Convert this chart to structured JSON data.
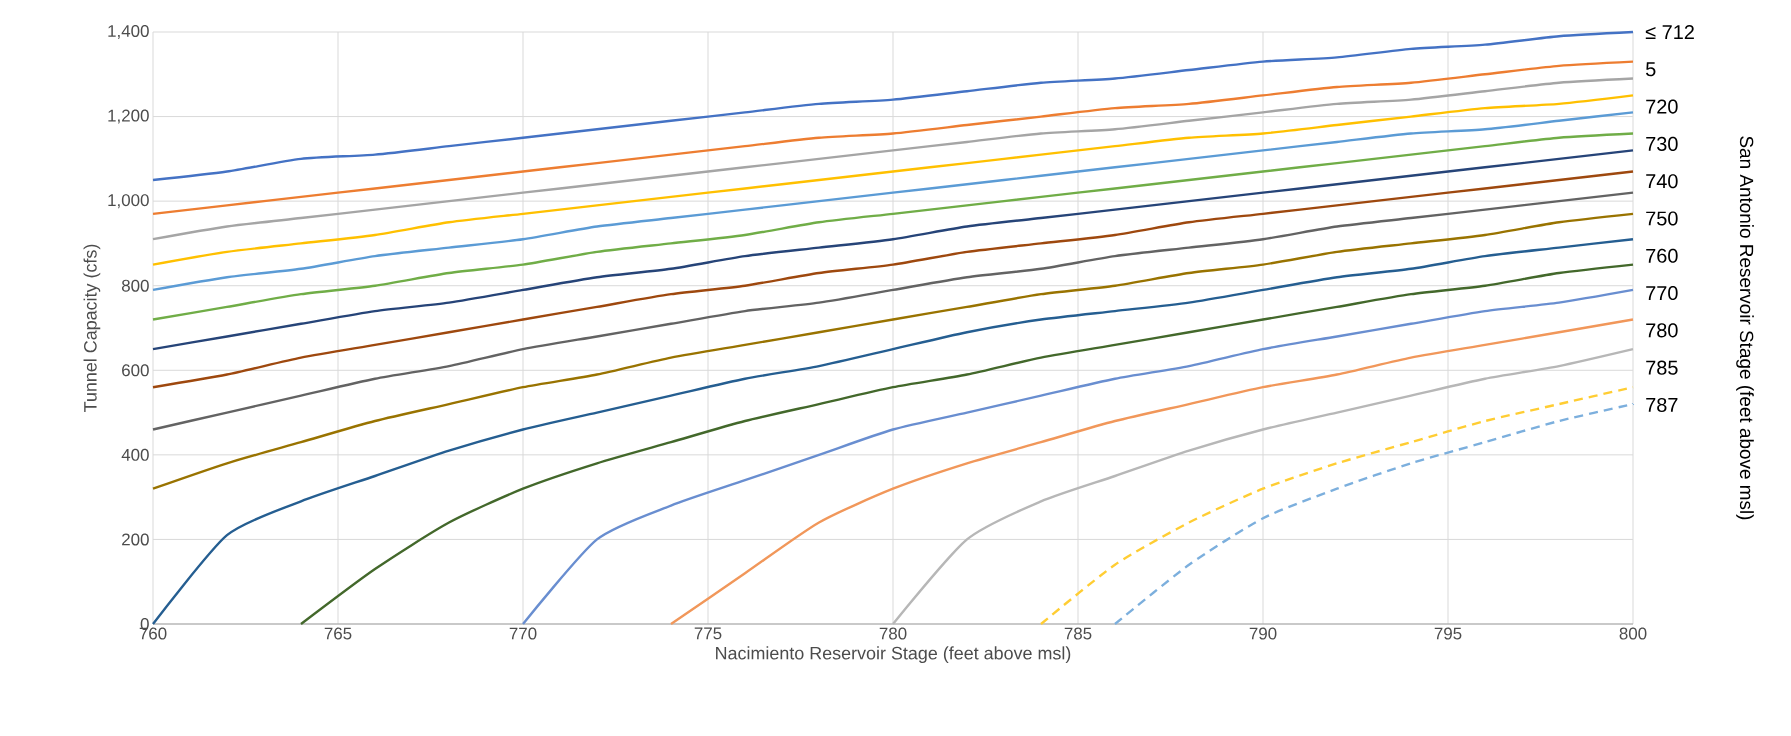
{
  "chart_data": {
    "type": "line",
    "xlabel": "Nacimiento Reservoir Stage (feet above msl)",
    "ylabel": "Tunnel Capacity (cfs)",
    "y2label": "San Antonio Reservoir Stage (feet above msl)",
    "x": [
      760,
      762,
      764,
      766,
      768,
      770,
      772,
      774,
      776,
      778,
      780,
      782,
      784,
      786,
      788,
      790,
      792,
      794,
      796,
      798,
      800
    ],
    "xlim": [
      760,
      800
    ],
    "xticks": [
      760,
      765,
      770,
      775,
      780,
      785,
      790,
      795,
      800
    ],
    "ylim": [
      0,
      1400
    ],
    "yticks": [
      0,
      200,
      400,
      600,
      800,
      {
        "value": 1000,
        "label": "1,000"
      },
      {
        "value": 1200,
        "label": "1,200"
      },
      {
        "value": 1400,
        "label": "1,400"
      }
    ],
    "grid": true,
    "line_style": "solid",
    "series": [
      {
        "color": "#4472c4",
        "values": [
          1050,
          1070,
          1100,
          1110,
          1130,
          1150,
          1170,
          1190,
          1210,
          1230,
          1240,
          1260,
          1280,
          1290,
          1310,
          1330,
          1340,
          1360,
          1370,
          1390,
          1400
        ]
      },
      {
        "color": "#ed7d31",
        "values": [
          970,
          990,
          1010,
          1030,
          1050,
          1070,
          1090,
          1110,
          1130,
          1150,
          1160,
          1180,
          1200,
          1220,
          1230,
          1250,
          1270,
          1280,
          1300,
          1320,
          1330
        ]
      },
      {
        "color": "#a5a5a5",
        "values": [
          910,
          940,
          960,
          980,
          1000,
          1020,
          1040,
          1060,
          1080,
          1100,
          1120,
          1140,
          1160,
          1170,
          1190,
          1210,
          1230,
          1240,
          1260,
          1280,
          1290
        ]
      },
      {
        "color": "#ffc000",
        "values": [
          850,
          880,
          900,
          920,
          950,
          970,
          990,
          1010,
          1030,
          1050,
          1070,
          1090,
          1110,
          1130,
          1150,
          1160,
          1180,
          1200,
          1220,
          1230,
          1250
        ]
      },
      {
        "color": "#5b9bd5",
        "values": [
          790,
          820,
          840,
          870,
          890,
          910,
          940,
          960,
          980,
          1000,
          1020,
          1040,
          1060,
          1080,
          1100,
          1120,
          1140,
          1160,
          1170,
          1190,
          1210
        ]
      },
      {
        "color": "#70ad47",
        "values": [
          720,
          750,
          780,
          800,
          830,
          850,
          880,
          900,
          920,
          950,
          970,
          990,
          1010,
          1030,
          1050,
          1070,
          1090,
          1110,
          1130,
          1150,
          1160
        ]
      },
      {
        "color": "#264478",
        "values": [
          650,
          680,
          710,
          740,
          760,
          790,
          820,
          840,
          870,
          890,
          910,
          940,
          960,
          980,
          1000,
          1020,
          1040,
          1060,
          1080,
          1100,
          1120
        ]
      },
      {
        "color": "#9e480e",
        "values": [
          560,
          590,
          630,
          660,
          690,
          720,
          750,
          780,
          800,
          830,
          850,
          880,
          900,
          920,
          950,
          970,
          990,
          1010,
          1030,
          1050,
          1070
        ]
      },
      {
        "color": "#636363",
        "values": [
          460,
          500,
          540,
          580,
          610,
          650,
          680,
          710,
          740,
          760,
          790,
          820,
          840,
          870,
          890,
          910,
          940,
          960,
          980,
          1000,
          1020
        ]
      },
      {
        "color": "#997300",
        "values": [
          320,
          380,
          430,
          480,
          520,
          560,
          590,
          630,
          660,
          690,
          720,
          750,
          780,
          800,
          830,
          850,
          880,
          900,
          920,
          950,
          970
        ]
      },
      {
        "color": "#255e91",
        "values": [
          0,
          210,
          290,
          350,
          410,
          460,
          500,
          540,
          580,
          610,
          650,
          690,
          720,
          740,
          760,
          790,
          820,
          840,
          870,
          890,
          910
        ]
      },
      {
        "color": "#43682b",
        "x": [
          764,
          766,
          768,
          770,
          772,
          774,
          776,
          778,
          780,
          782,
          784,
          786,
          788,
          790,
          792,
          794,
          796,
          798,
          800
        ],
        "values": [
          0,
          130,
          240,
          320,
          380,
          430,
          480,
          520,
          560,
          590,
          630,
          660,
          690,
          720,
          750,
          780,
          800,
          830,
          850
        ]
      },
      {
        "color": "#698ed0",
        "x": [
          770,
          772,
          774,
          776,
          778,
          780,
          782,
          784,
          786,
          788,
          790,
          792,
          794,
          796,
          798,
          800
        ],
        "values": [
          0,
          200,
          280,
          340,
          400,
          460,
          500,
          540,
          580,
          610,
          650,
          680,
          710,
          740,
          760,
          790
        ]
      },
      {
        "color": "#f1975a",
        "x": [
          774,
          776,
          778,
          780,
          782,
          784,
          786,
          788,
          790,
          792,
          794,
          796,
          798,
          800
        ],
        "values": [
          0,
          120,
          240,
          320,
          380,
          430,
          480,
          520,
          560,
          590,
          630,
          660,
          690,
          720
        ]
      },
      {
        "color": "#b7b7b7",
        "x": [
          780,
          782,
          784,
          786,
          788,
          790,
          792,
          794,
          796,
          798,
          800
        ],
        "values": [
          0,
          200,
          290,
          350,
          410,
          460,
          500,
          540,
          580,
          610,
          650
        ]
      },
      {
        "color": "#ffcd33",
        "line_style": "dashed",
        "x": [
          784,
          786,
          788,
          790,
          792,
          794,
          796,
          798,
          800
        ],
        "values": [
          0,
          140,
          240,
          320,
          380,
          430,
          480,
          520,
          560
        ]
      },
      {
        "color": "#7cafdd",
        "line_style": "dashed",
        "x": [
          786,
          788,
          790,
          792,
          794,
          796,
          798,
          800
        ],
        "values": [
          0,
          140,
          250,
          320,
          380,
          430,
          480,
          520
        ]
      }
    ],
    "annotations": [
      "≤ 712",
      "5",
      "720",
      "730",
      "740",
      "750",
      "760",
      "770",
      "780",
      "785",
      "787"
    ]
  }
}
